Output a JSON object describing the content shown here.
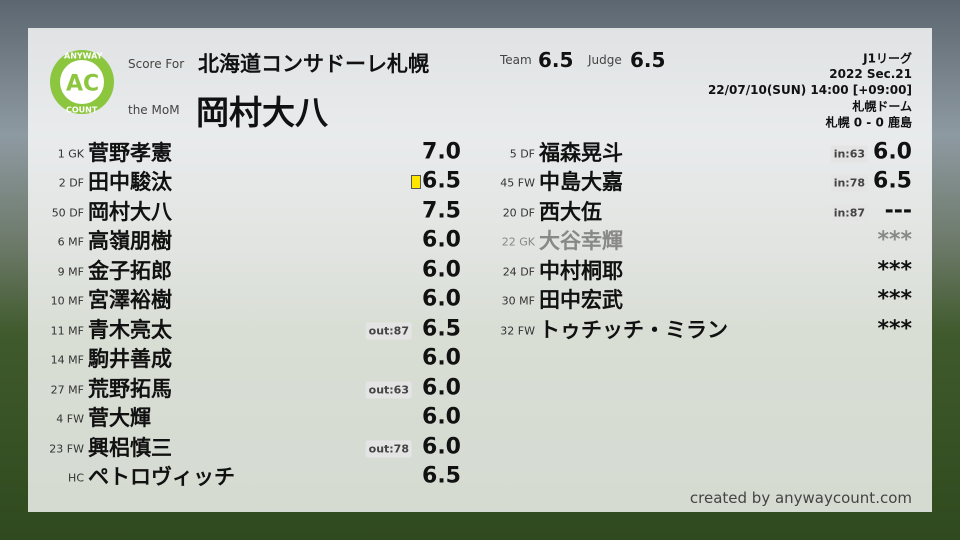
{
  "logo": {
    "top": "ANYWAY",
    "mark": "AC",
    "bottom": "COUNT"
  },
  "header": {
    "score_for_label": "Score For",
    "team": "北海道コンサドーレ札幌",
    "mom_label": "the MoM",
    "mom": "岡村大八",
    "team_label": "Team",
    "team_score": "6.5",
    "judge_label": "Judge",
    "judge_score": "6.5"
  },
  "match": {
    "league": "J1リーグ",
    "season": "2022 Sec.21",
    "datetime": "22/07/10(SUN) 14:00 [+09:00]",
    "venue": "札幌ドーム",
    "result": "札幌 0 - 0 鹿島"
  },
  "starters": [
    {
      "number": "1",
      "position": "GK",
      "name": "菅野孝憲",
      "score": "7.0"
    },
    {
      "number": "2",
      "position": "DF",
      "name": "田中駿汰",
      "score": "6.5",
      "yellow_card": true
    },
    {
      "number": "50",
      "position": "DF",
      "name": "岡村大八",
      "score": "7.5"
    },
    {
      "number": "6",
      "position": "MF",
      "name": "高嶺朋樹",
      "score": "6.0"
    },
    {
      "number": "9",
      "position": "MF",
      "name": "金子拓郎",
      "score": "6.0"
    },
    {
      "number": "10",
      "position": "MF",
      "name": "宮澤裕樹",
      "score": "6.0"
    },
    {
      "number": "11",
      "position": "MF",
      "name": "青木亮太",
      "sub": "out:87",
      "score": "6.5"
    },
    {
      "number": "14",
      "position": "MF",
      "name": "駒井善成",
      "score": "6.0"
    },
    {
      "number": "27",
      "position": "MF",
      "name": "荒野拓馬",
      "sub": "out:63",
      "score": "6.0"
    },
    {
      "number": "4",
      "position": "FW",
      "name": "菅大輝",
      "score": "6.0"
    },
    {
      "number": "23",
      "position": "FW",
      "name": "興梠慎三",
      "sub": "out:78",
      "score": "6.0"
    },
    {
      "position": "HC",
      "name": "ペトロヴィッチ",
      "score": "6.5"
    }
  ],
  "substitutes": [
    {
      "number": "5",
      "position": "DF",
      "name": "福森晃斗",
      "sub": "in:63",
      "score": "6.0"
    },
    {
      "number": "45",
      "position": "FW",
      "name": "中島大嘉",
      "sub": "in:78",
      "score": "6.5"
    },
    {
      "number": "20",
      "position": "DF",
      "name": "西大伍",
      "sub": "in:87",
      "score": "---"
    },
    {
      "number": "22",
      "position": "GK",
      "name": "大谷幸輝",
      "score": "***",
      "dimmed": true
    },
    {
      "number": "24",
      "position": "DF",
      "name": "中村桐耶",
      "score": "***"
    },
    {
      "number": "30",
      "position": "MF",
      "name": "田中宏武",
      "score": "***"
    },
    {
      "number": "32",
      "position": "FW",
      "name": "トゥチッチ・ミラン",
      "score": "***"
    }
  ],
  "footer": "created by anywaycount.com"
}
